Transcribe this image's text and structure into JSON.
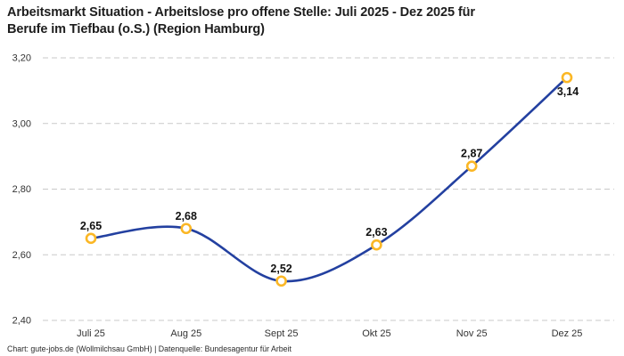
{
  "header": {
    "title_line1": "Arbeitsmarkt Situation - Arbeitslose pro offene Stelle: Juli 2025 - Dez 2025 für",
    "title_line2": "Berufe im Tiefbau (o.S.) (Region Hamburg)"
  },
  "footer": {
    "credit": "Chart: gute-jobs.de (Wollmilchsau GmbH) | Datenquelle: Bundesagentur für Arbeit"
  },
  "chart_data": {
    "type": "line",
    "title": "Arbeitsmarkt Situation - Arbeitslose pro offene Stelle: Juli 2025 - Dez 2025 für Berufe im Tiefbau (o.S.) (Region Hamburg)",
    "categories": [
      "Juli 25",
      "Aug 25",
      "Sept 25",
      "Okt 25",
      "Nov 25",
      "Dez 25"
    ],
    "values": [
      2.65,
      2.68,
      2.52,
      2.63,
      2.87,
      3.14
    ],
    "value_labels": [
      "2,65",
      "2,68",
      "2,52",
      "2,63",
      "2,87",
      "3,14"
    ],
    "last_label_position": "below",
    "y_ticks": [
      {
        "value": 2.4,
        "label": "2,40"
      },
      {
        "value": 2.6,
        "label": "2,60"
      },
      {
        "value": 2.8,
        "label": "2,80"
      },
      {
        "value": 3.0,
        "label": "3,00"
      },
      {
        "value": 3.2,
        "label": "3,20"
      }
    ],
    "ylim": [
      2.4,
      3.2
    ],
    "xlabel": "",
    "ylabel": "",
    "grid": "horizontal-dashed",
    "legend": "none",
    "colors": {
      "line": "#2340a0",
      "marker_ring": "#fbb725",
      "marker_fill": "#ffffff",
      "gridline": "#c9c9c9",
      "tick_text": "#333333",
      "value_label_text": "#111111",
      "title_text": "#1d1d1d"
    }
  }
}
